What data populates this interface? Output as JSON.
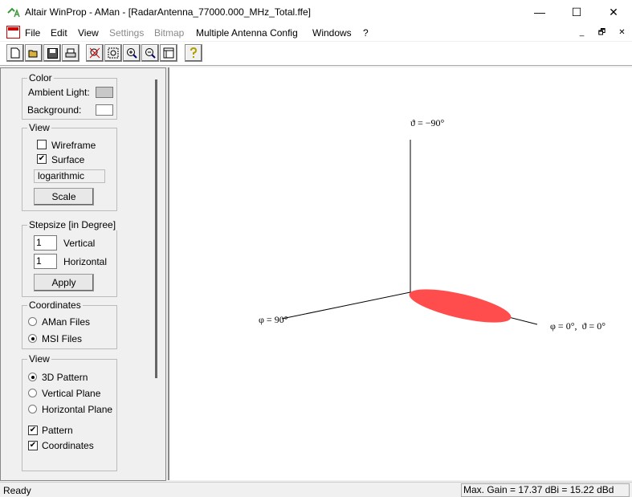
{
  "window": {
    "title": "Altair WinProp - AMan - [RadarAntenna_77000.000_MHz_Total.ffe]",
    "minimize": "—",
    "maximize": "☐",
    "close": "✕"
  },
  "menu": {
    "items": [
      {
        "label": "File",
        "enabled": true
      },
      {
        "label": "Edit",
        "enabled": true
      },
      {
        "label": "View",
        "enabled": true
      },
      {
        "label": "Settings",
        "enabled": false
      },
      {
        "label": "Bitmap",
        "enabled": false
      },
      {
        "label": "Multiple Antenna Config",
        "enabled": true
      },
      {
        "label": "Windows",
        "enabled": true
      },
      {
        "label": "?",
        "enabled": true
      }
    ],
    "mdi": [
      "_",
      "🗗",
      "✕"
    ]
  },
  "toolbar": [
    "new-icon",
    "open-icon",
    "save-icon",
    "print-icon",
    "zoom-reset-icon",
    "zoom-window-icon",
    "zoom-in-icon",
    "zoom-out-icon",
    "view-icon",
    "help-icon"
  ],
  "panel": {
    "color": {
      "legend": "Color",
      "ambient": "Ambient Light:",
      "background": "Background:",
      "ambient_color": "#c8c8c8",
      "background_color": "#ffffff"
    },
    "view": {
      "legend": "View",
      "wireframe": "Wireframe",
      "wireframe_checked": false,
      "surface": "Surface",
      "surface_checked": true,
      "scale_value": "logarithmic",
      "scale_button": "Scale"
    },
    "stepsize": {
      "legend": "Stepsize [in Degree]",
      "vertical_value": "1",
      "vertical": "Vertical",
      "horizontal_value": "1",
      "horizontal": "Horizontal",
      "apply": "Apply"
    },
    "coordinates": {
      "legend": "Coordinates",
      "aman": "AMan Files",
      "msi": "MSI Files",
      "selected": "MSI Files"
    },
    "view2": {
      "legend": "View",
      "pattern3d": "3D Pattern",
      "vertical": "Vertical Plane",
      "horizontal": "Horizontal Plane",
      "selected": "3D Pattern",
      "pattern": "Pattern",
      "coordinates": "Coordinates"
    }
  },
  "canvas": {
    "label_top": "ϑ = −90°",
    "label_left": "φ = 90°",
    "label_right": "φ = 0°,  ϑ = 0°",
    "pattern_color": "#ff4d4d"
  },
  "status": {
    "ready": "Ready",
    "gain": "Max. Gain = 17.37 dBi = 15.22 dBd"
  }
}
